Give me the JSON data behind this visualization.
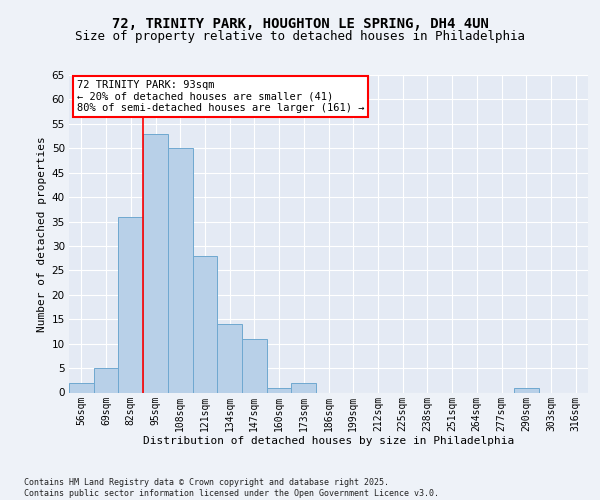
{
  "title_line1": "72, TRINITY PARK, HOUGHTON LE SPRING, DH4 4UN",
  "title_line2": "Size of property relative to detached houses in Philadelphia",
  "xlabel": "Distribution of detached houses by size in Philadelphia",
  "ylabel": "Number of detached properties",
  "categories": [
    "56sqm",
    "69sqm",
    "82sqm",
    "95sqm",
    "108sqm",
    "121sqm",
    "134sqm",
    "147sqm",
    "160sqm",
    "173sqm",
    "186sqm",
    "199sqm",
    "212sqm",
    "225sqm",
    "238sqm",
    "251sqm",
    "264sqm",
    "277sqm",
    "290sqm",
    "303sqm",
    "316sqm"
  ],
  "values": [
    2,
    5,
    36,
    53,
    50,
    28,
    14,
    11,
    1,
    2,
    0,
    0,
    0,
    0,
    0,
    0,
    0,
    0,
    1,
    0,
    0
  ],
  "bar_color": "#b8d0e8",
  "bar_edge_color": "#6fa8d0",
  "red_line_index": 2.5,
  "annotation_title": "72 TRINITY PARK: 93sqm",
  "annotation_line1": "← 20% of detached houses are smaller (41)",
  "annotation_line2": "80% of semi-detached houses are larger (161) →",
  "ylim": [
    0,
    65
  ],
  "yticks": [
    0,
    5,
    10,
    15,
    20,
    25,
    30,
    35,
    40,
    45,
    50,
    55,
    60,
    65
  ],
  "footer_line1": "Contains HM Land Registry data © Crown copyright and database right 2025.",
  "footer_line2": "Contains public sector information licensed under the Open Government Licence v3.0.",
  "bg_color": "#eef2f8",
  "plot_bg_color": "#e4eaf4",
  "grid_color": "#ffffff",
  "title1_fontsize": 10,
  "title2_fontsize": 9,
  "ylabel_fontsize": 8,
  "xlabel_fontsize": 8,
  "tick_fontsize": 7,
  "footer_fontsize": 6,
  "ann_fontsize": 7.5
}
